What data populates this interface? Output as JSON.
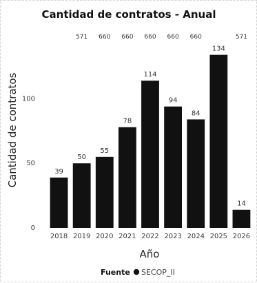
{
  "chart_data": {
    "type": "bar",
    "title": "Cantidad de contratos - Anual",
    "xlabel": "Año",
    "ylabel": "Cantidad de contratos",
    "categories": [
      "2018",
      "2019",
      "2020",
      "2021",
      "2022",
      "2023",
      "2024",
      "2025",
      "2026"
    ],
    "values": [
      39,
      50,
      55,
      78,
      114,
      94,
      84,
      134,
      14
    ],
    "top_labels": [
      "571",
      "660",
      "660",
      "660",
      "660",
      "660",
      "571"
    ],
    "top_label_indices": [
      1,
      2,
      3,
      4,
      5,
      6,
      8
    ],
    "yticks": [
      0,
      50,
      100
    ],
    "ylim": [
      0,
      145
    ],
    "grid": false,
    "legend": {
      "title": "Fuente",
      "items": [
        {
          "label": "SECOP_II",
          "color": "#111111"
        }
      ],
      "position": "bottom-center"
    },
    "bar_color": "#111111"
  }
}
